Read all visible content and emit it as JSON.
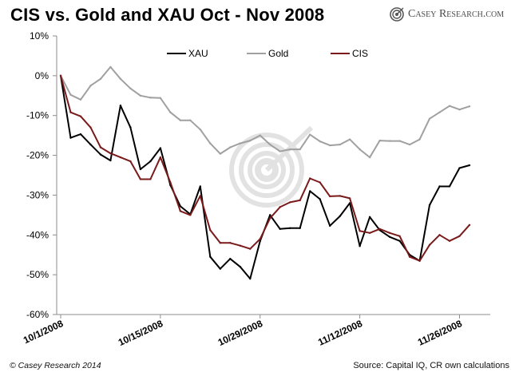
{
  "header": {
    "title": "CIS vs. Gold and XAU Oct - Nov 2008",
    "brand": "Casey Research.com"
  },
  "footer": {
    "copyright": "© Casey Research 2014",
    "source": "Source: Capital IQ, CR own calculations"
  },
  "colors": {
    "xau": "#000000",
    "gold": "#a0a0a0",
    "cis": "#7a1a1a",
    "axis": "#8c8c8c",
    "watermark": "#e2e2e2"
  },
  "chart_data": {
    "type": "line",
    "title": "CIS vs. Gold and XAU Oct - Nov 2008",
    "xlabel": "",
    "ylabel": "",
    "ylim": [
      -60,
      10
    ],
    "y_ticks": [
      10,
      0,
      -10,
      -20,
      -30,
      -40,
      -50,
      -60
    ],
    "y_tick_labels": [
      "10%",
      "0%",
      "-10%",
      "-20%",
      "-30%",
      "-40%",
      "-50%",
      "-60%"
    ],
    "x_ticks": [
      "10/1/2008",
      "10/15/2008",
      "10/29/2008",
      "11/12/2008",
      "11/26/2008"
    ],
    "x_index": [
      0,
      1,
      2,
      3,
      4,
      5,
      6,
      7,
      8,
      9,
      10,
      11,
      12,
      13,
      14,
      15,
      16,
      17,
      18,
      19,
      20,
      21,
      22,
      23,
      24,
      25,
      26,
      27,
      28,
      29,
      30,
      31,
      32,
      33,
      34,
      35,
      36,
      37,
      38,
      39,
      40,
      41
    ],
    "x_tick_positions": [
      0,
      10,
      20,
      30,
      40
    ],
    "legend_position": "top-center",
    "series": [
      {
        "name": "XAU",
        "color": "#000000",
        "values": [
          0,
          -15.6,
          -14.7,
          -17.3,
          -19.8,
          -21.3,
          -7.5,
          -13.0,
          -23.5,
          -21.5,
          -18.2,
          -27.5,
          -32.8,
          -34.8,
          -27.8,
          -45.5,
          -48.5,
          -46.0,
          -48.0,
          -51.0,
          -41.5,
          -35.0,
          -38.5,
          -38.3,
          -38.3,
          -29.0,
          -31.0,
          -37.7,
          -35.3,
          -32.0,
          -42.8,
          -35.5,
          -38.8,
          -40.5,
          -41.5,
          -45.0,
          -46.5,
          -32.5,
          -27.8,
          -27.8,
          -23.2,
          -22.5
        ]
      },
      {
        "name": "Gold",
        "color": "#a0a0a0",
        "values": [
          0,
          -4.8,
          -6.0,
          -2.5,
          -0.8,
          2.2,
          -0.8,
          -3.2,
          -5.0,
          -5.5,
          -5.6,
          -9.2,
          -11.2,
          -11.2,
          -13.5,
          -17.0,
          -19.6,
          -18.0,
          -17.0,
          -16.3,
          -15.0,
          -17.3,
          -19.0,
          -18.5,
          -18.5,
          -14.8,
          -16.5,
          -17.5,
          -17.3,
          -16.0,
          -18.5,
          -20.5,
          -16.3,
          -16.4,
          -16.4,
          -17.3,
          -16.0,
          -10.8,
          -9.2,
          -7.6,
          -8.5,
          -7.7
        ]
      },
      {
        "name": "CIS",
        "color": "#7a1a1a",
        "values": [
          0,
          -9.2,
          -10.2,
          -13.0,
          -18.0,
          -19.5,
          -20.5,
          -21.5,
          -26.0,
          -26.0,
          -20.5,
          -26.8,
          -34.0,
          -35.0,
          -30.2,
          -38.8,
          -42.0,
          -42.0,
          -42.7,
          -43.5,
          -41.0,
          -35.8,
          -33.0,
          -31.8,
          -31.3,
          -25.8,
          -26.8,
          -30.3,
          -30.2,
          -30.8,
          -39.0,
          -39.5,
          -38.5,
          -39.5,
          -40.3,
          -45.5,
          -46.5,
          -42.5,
          -40.0,
          -41.5,
          -40.3,
          -37.5
        ]
      }
    ]
  }
}
